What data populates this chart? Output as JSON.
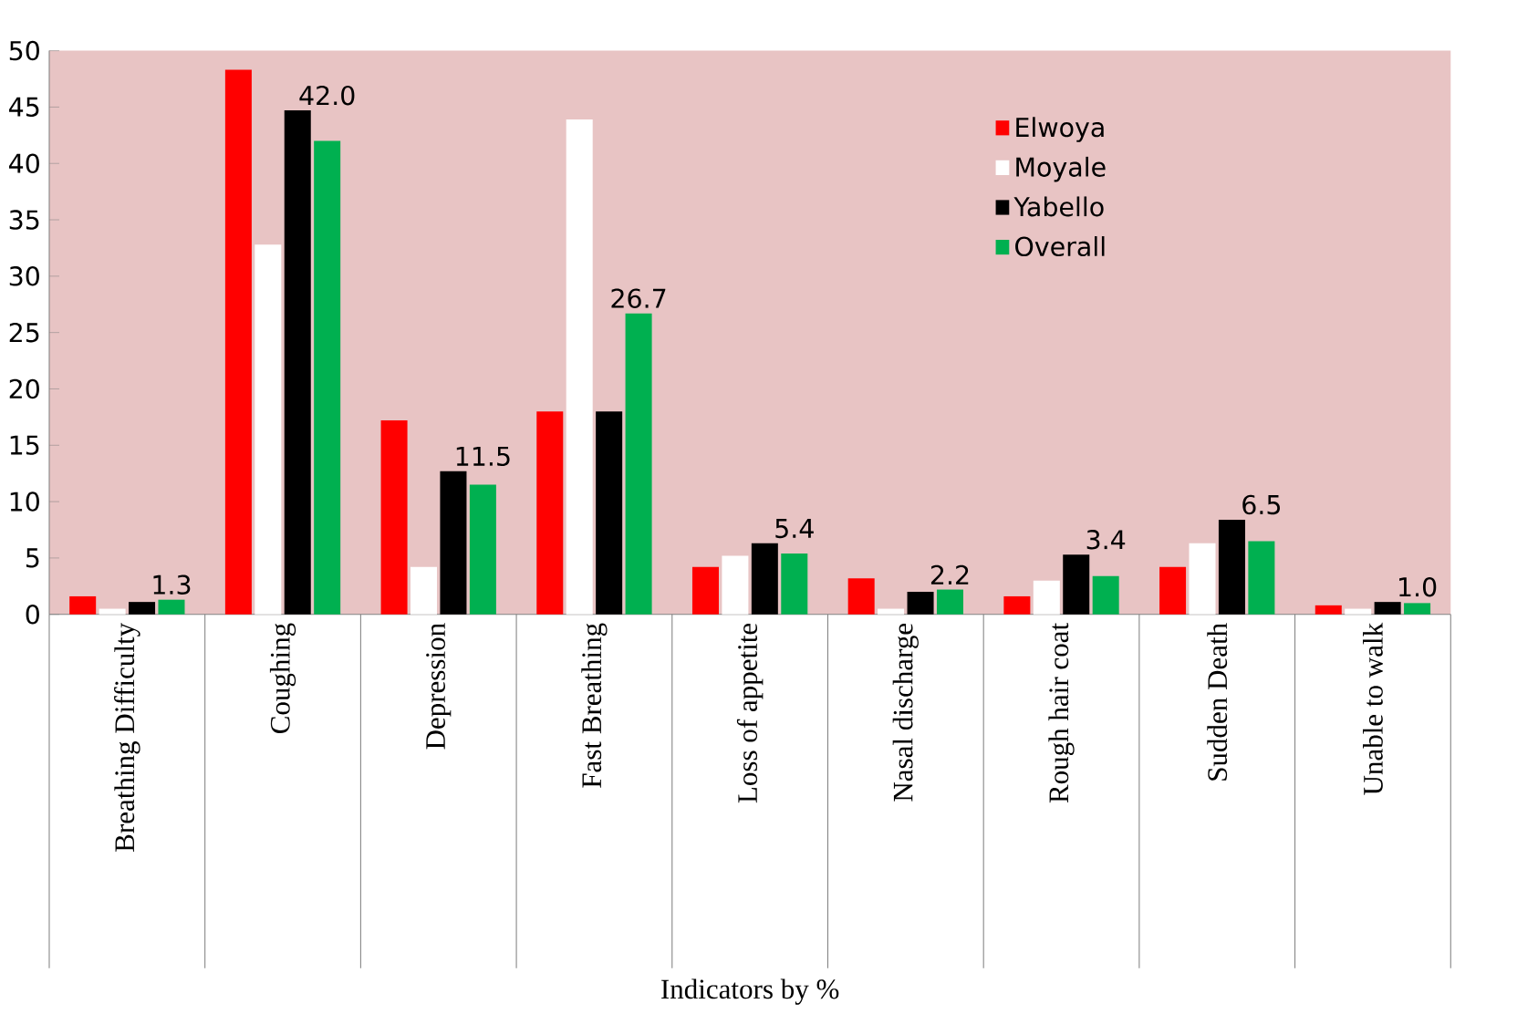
{
  "chart_data": {
    "type": "bar",
    "xlabel": "Indicators by %",
    "categories": [
      "Breathing Difficulty",
      "Coughing",
      "Depression",
      "Fast Breathing",
      "Loss of appetite",
      "Nasal discharge",
      "Rough hair coat",
      "Sudden Death",
      "Unable to walk"
    ],
    "series": [
      {
        "name": "Elwoya",
        "color": "#ff0000",
        "values": [
          1.6,
          48.3,
          17.2,
          18.0,
          4.2,
          3.2,
          1.6,
          4.2,
          0.8
        ]
      },
      {
        "name": "Moyale",
        "color": "#ffffff",
        "values": [
          0.5,
          32.8,
          4.2,
          43.9,
          5.2,
          0.5,
          3.0,
          6.3,
          0.5
        ]
      },
      {
        "name": "Yabello",
        "color": "#000000",
        "values": [
          1.1,
          44.7,
          12.7,
          18.0,
          6.3,
          2.0,
          5.3,
          8.4,
          1.1
        ]
      },
      {
        "name": "Overall",
        "color": "#00b050",
        "values": [
          1.3,
          42.0,
          11.5,
          26.7,
          5.4,
          2.2,
          3.4,
          6.5,
          1.0
        ],
        "value_labels": [
          "1.3",
          "42.0",
          "11.5",
          "26.7",
          "5.4",
          "2.2",
          "3.4",
          "6.5",
          "1.0"
        ]
      }
    ],
    "ylim": [
      0,
      50
    ],
    "yticks": [
      0,
      5,
      10,
      15,
      20,
      25,
      30,
      35,
      40,
      45,
      50
    ],
    "grid": false,
    "legend": "top right"
  }
}
